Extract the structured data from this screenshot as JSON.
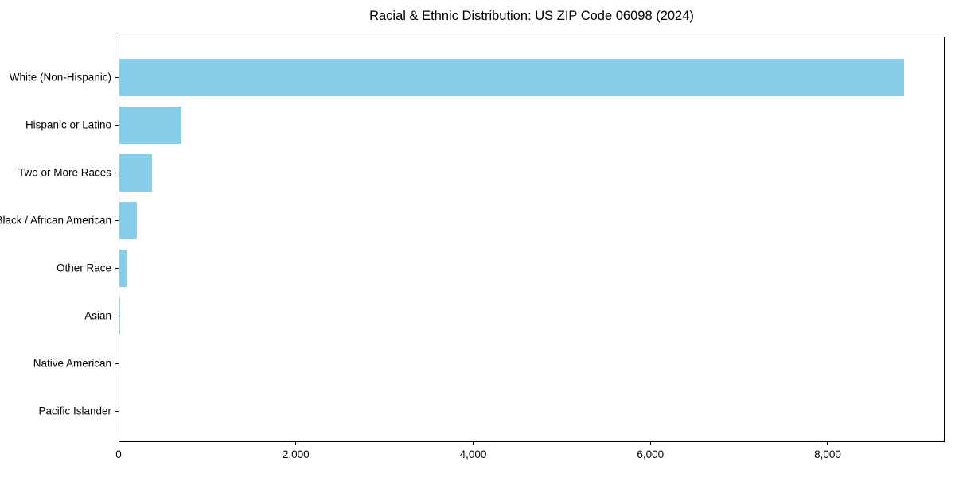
{
  "figure": {
    "background": "#ffffff"
  },
  "chart_data": {
    "type": "bar",
    "orientation": "horizontal",
    "title": "Racial & Ethnic Distribution: US ZIP Code 06098 (2024)",
    "categories": [
      "White (Non-Hispanic)",
      "Hispanic or Latino",
      "Two or More Races",
      "Black / African American",
      "Other Race",
      "Asian",
      "Native American",
      "Pacific Islander"
    ],
    "values": [
      8870,
      700,
      370,
      200,
      85,
      12,
      0,
      0
    ],
    "xlabel": "",
    "ylabel": "",
    "xlim": [
      0,
      9320
    ],
    "xticks": [
      0,
      2000,
      4000,
      6000,
      8000
    ],
    "xtick_labels": [
      "0",
      "2,000",
      "4,000",
      "6,000",
      "8,000"
    ],
    "bar_color": "#87CEEB",
    "axis_color": "#000000",
    "grid": false,
    "legend": "none"
  }
}
